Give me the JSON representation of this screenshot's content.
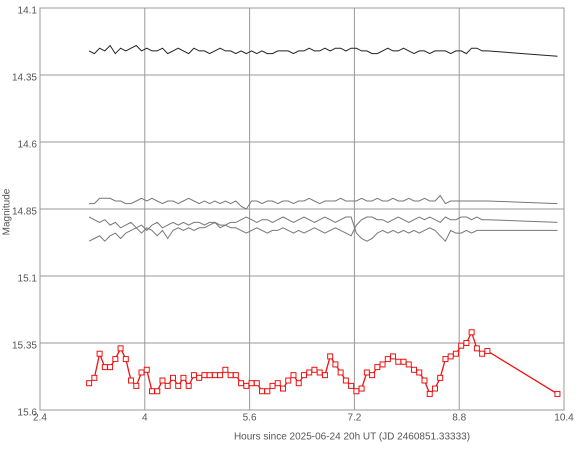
{
  "chart_data": {
    "type": "line",
    "xlabel": "Hours since 2025-06-24 20h UT (JD 2460851.33333)",
    "ylabel": "Magnitude",
    "xlim": [
      2.4,
      10.4
    ],
    "xticks": [
      2.4,
      4,
      5.6,
      7.2,
      8.8,
      10.4
    ],
    "ylim": [
      15.6,
      14.1
    ],
    "yticks": [
      14.1,
      14.35,
      14.6,
      14.85,
      15.1,
      15.35,
      15.6
    ],
    "grid": true,
    "x": [
      3.15,
      3.23,
      3.31,
      3.39,
      3.47,
      3.55,
      3.63,
      3.71,
      3.79,
      3.87,
      3.95,
      4.03,
      4.11,
      4.19,
      4.27,
      4.35,
      4.43,
      4.51,
      4.59,
      4.67,
      4.75,
      4.83,
      4.91,
      4.99,
      5.07,
      5.15,
      5.23,
      5.31,
      5.39,
      5.47,
      5.55,
      5.63,
      5.71,
      5.79,
      5.87,
      5.95,
      6.03,
      6.11,
      6.19,
      6.27,
      6.35,
      6.43,
      6.51,
      6.59,
      6.67,
      6.75,
      6.83,
      6.91,
      6.99,
      7.07,
      7.15,
      7.23,
      7.31,
      7.39,
      7.47,
      7.55,
      7.63,
      7.71,
      7.79,
      7.87,
      7.95,
      8.03,
      8.11,
      8.19,
      8.27,
      8.35,
      8.43,
      8.51,
      8.59,
      8.67,
      8.75,
      8.83,
      8.91,
      8.99,
      9.07,
      9.15,
      9.23,
      10.3
    ],
    "series": [
      {
        "color": "#222222",
        "marker": "none",
        "values": [
          14.26,
          14.27,
          14.25,
          14.26,
          14.24,
          14.27,
          14.25,
          14.26,
          14.25,
          14.24,
          14.26,
          14.25,
          14.26,
          14.26,
          14.25,
          14.27,
          14.26,
          14.25,
          14.26,
          14.27,
          14.25,
          14.26,
          14.26,
          14.27,
          14.26,
          14.25,
          14.26,
          14.26,
          14.27,
          14.26,
          14.27,
          14.26,
          14.27,
          14.26,
          14.27,
          14.27,
          14.26,
          14.26,
          14.26,
          14.27,
          14.26,
          14.26,
          14.25,
          14.26,
          14.26,
          14.25,
          14.26,
          14.25,
          14.25,
          14.26,
          14.25,
          14.25,
          14.26,
          14.26,
          14.27,
          14.27,
          14.26,
          14.25,
          14.26,
          14.26,
          14.25,
          14.26,
          14.27,
          14.26,
          14.26,
          14.27,
          14.26,
          14.26,
          14.26,
          14.27,
          14.26,
          14.26,
          14.27,
          14.25,
          14.25,
          14.26,
          14.26,
          14.28
        ]
      },
      {
        "color": "#777777",
        "marker": "none",
        "values": [
          14.83,
          14.83,
          14.81,
          14.81,
          14.81,
          14.82,
          14.82,
          14.83,
          14.83,
          14.82,
          14.81,
          14.82,
          14.81,
          14.82,
          14.83,
          14.82,
          14.82,
          14.83,
          14.82,
          14.81,
          14.82,
          14.83,
          14.82,
          14.83,
          14.82,
          14.83,
          14.82,
          14.83,
          14.82,
          14.84,
          14.85,
          14.82,
          14.82,
          14.83,
          14.82,
          14.82,
          14.83,
          14.82,
          14.82,
          14.83,
          14.82,
          14.82,
          14.81,
          14.82,
          14.83,
          14.82,
          14.82,
          14.82,
          14.81,
          14.82,
          14.82,
          14.82,
          14.81,
          14.82,
          14.82,
          14.81,
          14.82,
          14.82,
          14.81,
          14.82,
          14.82,
          14.81,
          14.82,
          14.82,
          14.81,
          14.82,
          14.82,
          14.8,
          14.83,
          14.82,
          14.82,
          14.82,
          14.82,
          14.82,
          14.82,
          14.82,
          14.82,
          14.83
        ]
      },
      {
        "color": "#777777",
        "marker": "none",
        "values": [
          14.88,
          14.89,
          14.9,
          14.89,
          14.91,
          14.9,
          14.92,
          14.91,
          14.9,
          14.92,
          14.91,
          14.93,
          14.91,
          14.9,
          14.92,
          14.91,
          14.9,
          14.91,
          14.9,
          14.91,
          14.9,
          14.9,
          14.91,
          14.9,
          14.9,
          14.91,
          14.91,
          14.92,
          14.92,
          14.93,
          14.94,
          14.93,
          14.92,
          14.93,
          14.94,
          14.93,
          14.93,
          14.92,
          14.93,
          14.94,
          14.93,
          14.94,
          14.93,
          14.92,
          14.93,
          14.94,
          14.93,
          14.92,
          14.93,
          14.94,
          14.95,
          14.91,
          14.89,
          14.88,
          14.88,
          14.89,
          14.89,
          14.9,
          14.89,
          14.88,
          14.89,
          14.9,
          14.89,
          14.88,
          14.89,
          14.88,
          14.89,
          14.9,
          14.88,
          14.89,
          14.89,
          14.88,
          14.88,
          14.89,
          14.88,
          14.89,
          14.89,
          14.9
        ]
      },
      {
        "color": "#777777",
        "marker": "none",
        "values": [
          14.97,
          14.96,
          14.95,
          14.97,
          14.95,
          14.94,
          14.96,
          14.94,
          14.93,
          14.92,
          14.94,
          14.92,
          14.93,
          14.95,
          14.93,
          14.96,
          14.93,
          14.92,
          14.93,
          14.92,
          14.93,
          14.92,
          14.92,
          14.91,
          14.9,
          14.92,
          14.91,
          14.9,
          14.9,
          14.89,
          14.88,
          14.89,
          14.9,
          14.89,
          14.89,
          14.9,
          14.89,
          14.88,
          14.89,
          14.9,
          14.89,
          14.88,
          14.89,
          14.9,
          14.89,
          14.88,
          14.89,
          14.9,
          14.89,
          14.88,
          14.88,
          14.94,
          14.96,
          14.97,
          14.96,
          14.94,
          14.93,
          14.94,
          14.93,
          14.94,
          14.93,
          14.94,
          14.93,
          14.94,
          14.93,
          14.92,
          14.93,
          14.95,
          14.97,
          14.93,
          14.94,
          14.94,
          14.93,
          14.94,
          14.93,
          14.93,
          14.93,
          14.93
        ]
      },
      {
        "color": "#ee1111",
        "marker": "square",
        "values": [
          15.5,
          15.48,
          15.39,
          15.44,
          15.44,
          15.41,
          15.37,
          15.41,
          15.49,
          15.51,
          15.46,
          15.45,
          15.53,
          15.53,
          15.49,
          15.51,
          15.48,
          15.51,
          15.48,
          15.51,
          15.47,
          15.48,
          15.47,
          15.47,
          15.47,
          15.47,
          15.45,
          15.47,
          15.47,
          15.5,
          15.51,
          15.5,
          15.5,
          15.53,
          15.53,
          15.51,
          15.5,
          15.52,
          15.49,
          15.47,
          15.5,
          15.47,
          15.46,
          15.45,
          15.46,
          15.47,
          15.4,
          15.43,
          15.46,
          15.49,
          15.51,
          15.53,
          15.52,
          15.46,
          15.47,
          15.44,
          15.43,
          15.41,
          15.4,
          15.42,
          15.42,
          15.43,
          15.45,
          15.46,
          15.49,
          15.54,
          15.52,
          15.48,
          15.41,
          15.4,
          15.39,
          15.36,
          15.35,
          15.31,
          15.37,
          15.39,
          15.38,
          15.54
        ]
      }
    ]
  }
}
